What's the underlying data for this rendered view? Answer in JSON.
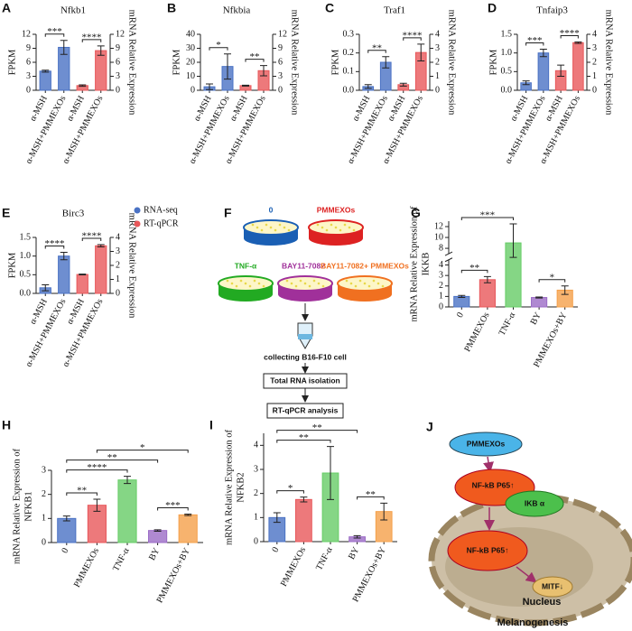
{
  "chart_data": [
    {
      "type": "bar",
      "panel": "A",
      "title": "Nfkb1",
      "ylabel": "FPKM",
      "y2label": "mRNA Relative Expression",
      "categories": [
        "α-MSH",
        "α-MSH+PMMEXOs",
        "α-MSH",
        "α-MSH+PMMEXOs"
      ],
      "series": [
        {
          "name": "RNA-seq",
          "color": "#4a72c4",
          "values": [
            4.1,
            9.2,
            null,
            null
          ],
          "errors": [
            0.2,
            1.5,
            null,
            null
          ]
        },
        {
          "name": "RT-qPCR",
          "color": "#e8575a",
          "axis": "y2",
          "values": [
            null,
            null,
            1.0,
            8.5
          ],
          "errors": [
            null,
            null,
            0.15,
            1.0
          ]
        }
      ],
      "ylim": [
        0,
        12
      ],
      "yticks": [
        0,
        3,
        6,
        9,
        12
      ],
      "y2lim": [
        0,
        12
      ],
      "y2ticks": [
        0,
        3,
        6,
        9,
        12
      ],
      "significance": [
        {
          "label": "***",
          "bars": [
            0,
            1
          ]
        },
        {
          "label": "****",
          "bars": [
            2,
            3
          ]
        }
      ]
    },
    {
      "type": "bar",
      "panel": "B",
      "title": "Nfkbia",
      "ylabel": "FPKM",
      "y2label": "mRNA Relative Expression",
      "categories": [
        "α-MSH",
        "α-MSH+PMMEXOs",
        "α-MSH",
        "α-MSH+PMMEXOs"
      ],
      "series": [
        {
          "name": "RNA-seq",
          "color": "#4a72c4",
          "values": [
            2.5,
            17,
            null,
            null
          ],
          "errors": [
            2,
            9,
            null,
            null
          ]
        },
        {
          "name": "RT-qPCR",
          "color": "#e8575a",
          "axis": "y2",
          "values": [
            null,
            null,
            1.0,
            4.2
          ],
          "errors": [
            null,
            null,
            0.1,
            1.1
          ]
        }
      ],
      "ylim": [
        0,
        40
      ],
      "yticks": [
        0,
        10,
        20,
        30,
        40
      ],
      "y2lim": [
        0,
        12
      ],
      "y2ticks": [
        0,
        3,
        6,
        9,
        12
      ],
      "significance": [
        {
          "label": "*",
          "bars": [
            0,
            1
          ]
        },
        {
          "label": "**",
          "bars": [
            2,
            3
          ]
        }
      ]
    },
    {
      "type": "bar",
      "panel": "C",
      "title": "Traf1",
      "ylabel": "FPKM",
      "y2label": "mRNA Relative Expression",
      "categories": [
        "α-MSH",
        "α-MSH+PMMEXOs",
        "α-MSH",
        "α-MSH+PMMEXOs"
      ],
      "series": [
        {
          "name": "RNA-seq",
          "color": "#4a72c4",
          "values": [
            0.02,
            0.15,
            null,
            null
          ],
          "errors": [
            0.01,
            0.03,
            null,
            null
          ]
        },
        {
          "name": "RT-qPCR",
          "color": "#e8575a",
          "axis": "y2",
          "values": [
            null,
            null,
            0.4,
            2.7
          ],
          "errors": [
            null,
            null,
            0.1,
            0.6
          ]
        }
      ],
      "ylim": [
        0,
        0.3
      ],
      "yticks": [
        {
          "value": 0,
          "label": "0.0"
        },
        0.1,
        0.2,
        0.3
      ],
      "y2lim": [
        0,
        4
      ],
      "y2ticks": [
        0,
        1,
        2,
        3,
        4
      ],
      "significance": [
        {
          "label": "**",
          "bars": [
            0,
            1
          ]
        },
        {
          "label": "****",
          "bars": [
            2,
            3
          ]
        }
      ]
    },
    {
      "type": "bar",
      "panel": "D",
      "title": "Tnfaip3",
      "ylabel": "FPKM",
      "y2label": "mRNA Relative Expression",
      "categories": [
        "α-MSH",
        "α-MSH+PMMEXOs",
        "α-MSH",
        "α-MSH+PMMEXOs"
      ],
      "series": [
        {
          "name": "RNA-seq",
          "color": "#4a72c4",
          "values": [
            0.2,
            1.0,
            null,
            null
          ],
          "errors": [
            0.05,
            0.1,
            null,
            null
          ]
        },
        {
          "name": "RT-qPCR",
          "color": "#e8575a",
          "axis": "y2",
          "values": [
            null,
            null,
            1.4,
            3.4
          ],
          "errors": [
            null,
            null,
            0.4,
            0.05
          ]
        }
      ],
      "ylim": [
        0,
        1.5
      ],
      "yticks": [
        {
          "value": 0,
          "label": "0.0"
        },
        0.5,
        {
          "value": 1,
          "label": "1.0"
        },
        1.5
      ],
      "y2lim": [
        0,
        4
      ],
      "y2ticks": [
        0,
        1,
        2,
        3,
        4
      ],
      "significance": [
        {
          "label": "***",
          "bars": [
            0,
            1
          ]
        },
        {
          "label": "****",
          "bars": [
            2,
            3
          ]
        }
      ]
    },
    {
      "type": "bar",
      "panel": "E",
      "title": "Birc3",
      "ylabel": "FPKM",
      "y2label": "mRNA Relative Expression",
      "legend": true,
      "categories": [
        "α-MSH",
        "α-MSH+PMMEXOs",
        "α-MSH",
        "α-MSH+PMMEXOs"
      ],
      "series": [
        {
          "name": "RNA-seq",
          "color": "#4a72c4",
          "values": [
            0.15,
            1.0,
            null,
            null
          ],
          "errors": [
            0.08,
            0.1,
            null,
            null
          ]
        },
        {
          "name": "RT-qPCR",
          "color": "#e8575a",
          "axis": "y2",
          "values": [
            null,
            null,
            1.35,
            3.4
          ],
          "errors": [
            null,
            null,
            0.03,
            0.08
          ]
        }
      ],
      "ylim": [
        0,
        1.5
      ],
      "yticks": [
        {
          "value": 0,
          "label": "0.0"
        },
        0.5,
        {
          "value": 1,
          "label": "1.0"
        },
        1.5
      ],
      "y2lim": [
        0,
        4
      ],
      "y2ticks": [
        0,
        1,
        2,
        3,
        4
      ],
      "significance": [
        {
          "label": "****",
          "bars": [
            0,
            1
          ]
        },
        {
          "label": "****",
          "bars": [
            2,
            3
          ]
        }
      ]
    },
    {
      "type": "bar",
      "panel": "G",
      "ylabel": [
        "mRNA Relative Expression of",
        "IKKB"
      ],
      "categories": [
        "0",
        "PMMEXOs",
        "TNF-α",
        "BY",
        "PMMEXOs+BY"
      ],
      "values": [
        1.0,
        2.6,
        9.0,
        0.9,
        1.6
      ],
      "errors": [
        0.1,
        0.3,
        3.5,
        0.05,
        0.4
      ],
      "colors": [
        "#4a72c4",
        "#e8575a",
        "#66cc66",
        "#9b6bc6",
        "#f5a04a"
      ],
      "ylim": [
        0,
        13
      ],
      "yticks": [
        0,
        1,
        2,
        3,
        4,
        8,
        10,
        12
      ],
      "axis_break": [
        4.5,
        7
      ],
      "significance": [
        {
          "label": "**",
          "bars": [
            0,
            1
          ]
        },
        {
          "label": "*",
          "bars": [
            3,
            4
          ]
        },
        {
          "label": "***",
          "bars": [
            0,
            2
          ]
        }
      ]
    },
    {
      "type": "bar",
      "panel": "H",
      "ylabel": [
        "mRNA Relative Expression of",
        "NFKB1"
      ],
      "categories": [
        "0",
        "PMMEXOs",
        "TNF-α",
        "BY",
        "PMMEXOs+BY"
      ],
      "values": [
        1.0,
        1.55,
        2.6,
        0.5,
        1.15
      ],
      "errors": [
        0.1,
        0.25,
        0.15,
        0.03,
        0.03
      ],
      "colors": [
        "#4a72c4",
        "#e8575a",
        "#66cc66",
        "#9b6bc6",
        "#f5a04a"
      ],
      "ylim": [
        0,
        3
      ],
      "yticks": [
        0,
        1,
        2,
        3
      ],
      "significance": [
        {
          "label": "**",
          "bars": [
            0,
            1
          ]
        },
        {
          "label": "***",
          "bars": [
            3,
            4
          ]
        },
        {
          "label": "****",
          "bars": [
            0,
            2
          ]
        },
        {
          "label": "**",
          "bars": [
            0,
            3
          ]
        },
        {
          "label": "*",
          "bars": [
            1,
            4
          ]
        }
      ]
    },
    {
      "type": "bar",
      "panel": "I",
      "ylabel": [
        "mRNA Relative Expression of",
        "NFKB2"
      ],
      "categories": [
        "0",
        "PMMEXOs",
        "TNF-α",
        "BY",
        "PMMEXOs+BY"
      ],
      "values": [
        1.0,
        1.75,
        2.85,
        0.2,
        1.25
      ],
      "errors": [
        0.2,
        0.1,
        1.1,
        0.05,
        0.35
      ],
      "colors": [
        "#4a72c4",
        "#e8575a",
        "#66cc66",
        "#9b6bc6",
        "#f5a04a"
      ],
      "ylim": [
        0,
        4.5
      ],
      "yticks": [
        0,
        1,
        2,
        3,
        4
      ],
      "significance": [
        {
          "label": "*",
          "bars": [
            0,
            1
          ]
        },
        {
          "label": "**",
          "bars": [
            3,
            4
          ]
        },
        {
          "label": "**",
          "bars": [
            0,
            2
          ]
        },
        {
          "label": "**",
          "bars": [
            0,
            3
          ]
        }
      ]
    }
  ],
  "diagram_f": {
    "panel": "F",
    "dishes": [
      "0",
      "PMMEXOs",
      "TNF-α",
      "BAY11-7082",
      "BAY11-7082+ PMMEXOs"
    ],
    "steps": [
      "collecting B16-F10 cell",
      "Total RNA isolation",
      "RT-qPCR analysis"
    ]
  },
  "diagram_j": {
    "panel": "J",
    "nodes": [
      "PMMEXOs",
      "NF-kB P65↑",
      "IKB α",
      "NF-kB P65↑",
      "MITF↓",
      "Nucleus"
    ],
    "caption": "Melanogenesis"
  }
}
